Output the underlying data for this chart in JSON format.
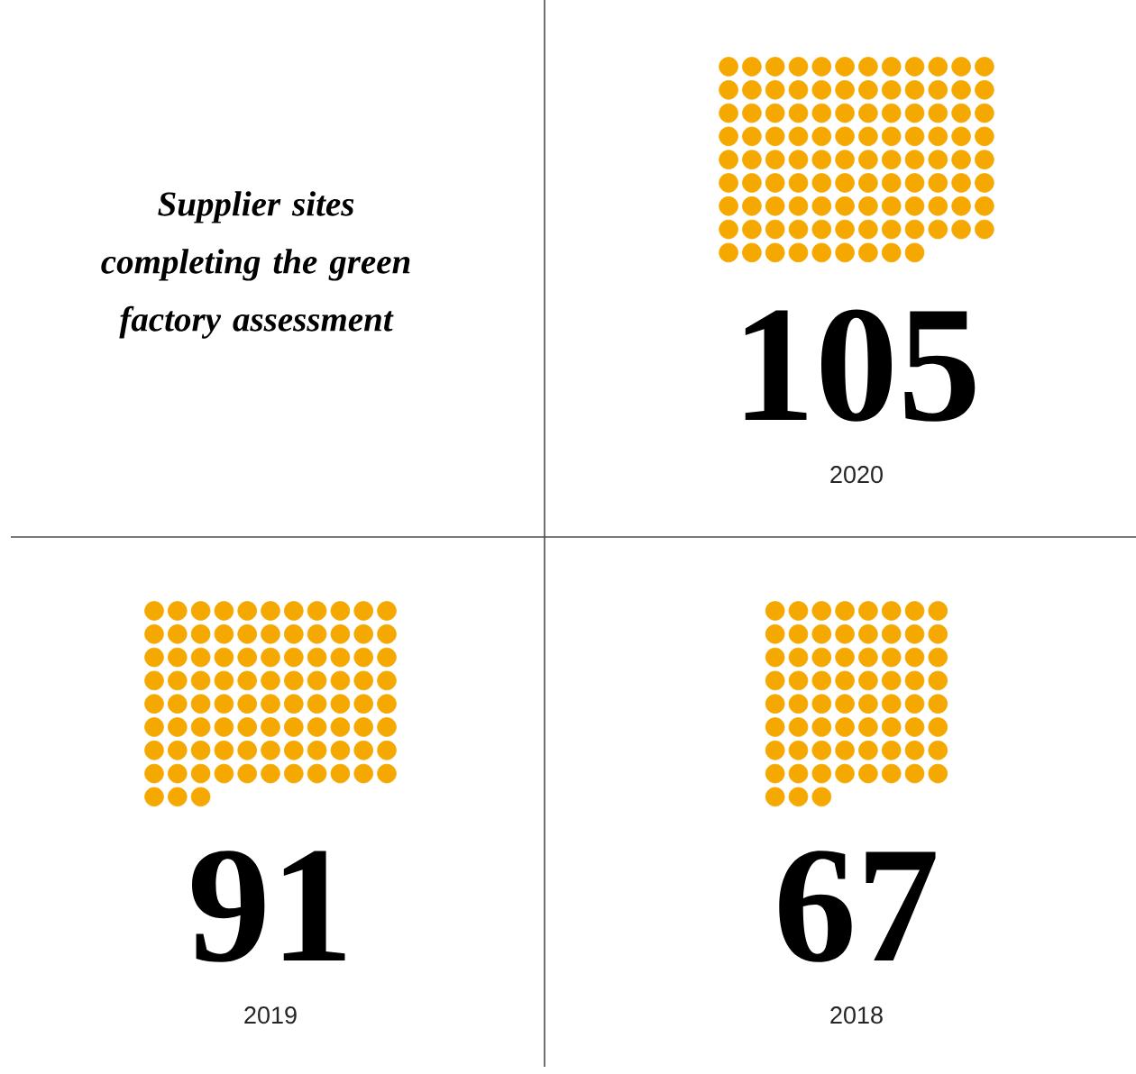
{
  "chart_data": {
    "type": "other",
    "title": "Supplier sites completing the green factory assessment",
    "categories": [
      "2020",
      "2019",
      "2018"
    ],
    "values": [
      105,
      91,
      67
    ],
    "color": "#f5a800",
    "data_labels": true
  }
}
